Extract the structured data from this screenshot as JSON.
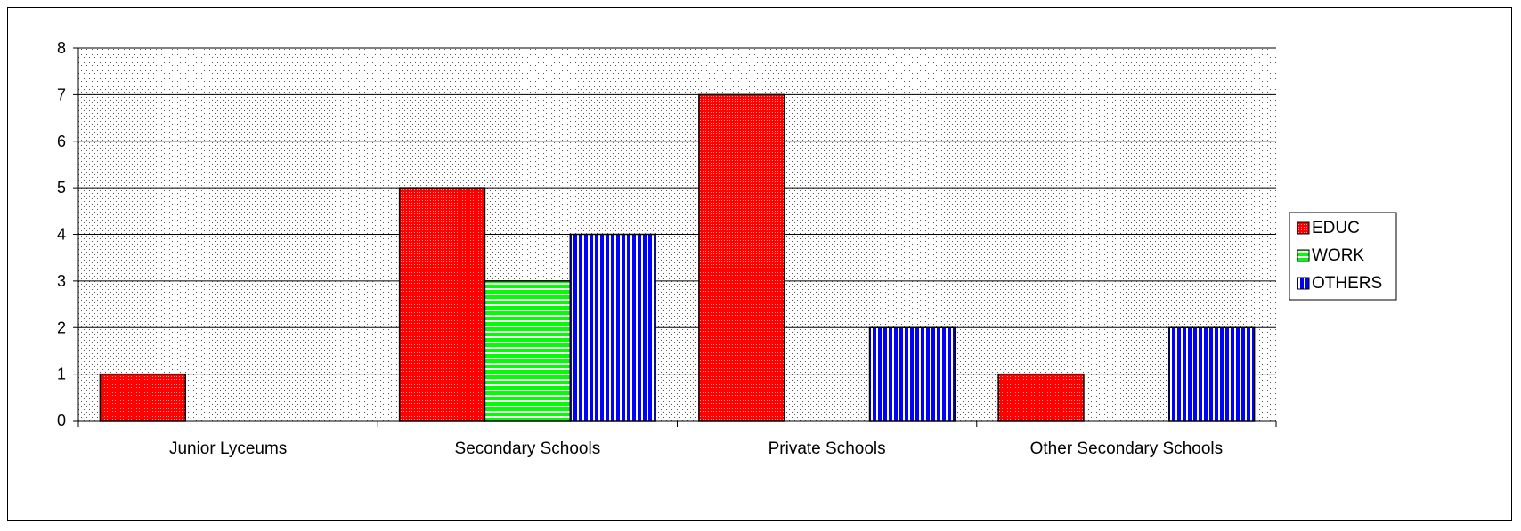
{
  "chart_data": {
    "type": "bar",
    "categories": [
      "Junior Lyceums",
      "Secondary Schools",
      "Private Schools",
      "Other Secondary Schools"
    ],
    "series": [
      {
        "name": "EDUC",
        "values": [
          1,
          5,
          7,
          1
        ],
        "color": "#ff0000",
        "pattern": "dots"
      },
      {
        "name": "WORK",
        "values": [
          0,
          3,
          0,
          0
        ],
        "color": "#00ff00",
        "pattern": "horizontal-lines"
      },
      {
        "name": "OTHERS",
        "values": [
          0,
          4,
          2,
          2
        ],
        "color": "#0000ff",
        "pattern": "vertical-lines"
      }
    ],
    "yticks": [
      0,
      1,
      2,
      3,
      4,
      5,
      6,
      7,
      8
    ],
    "ylim": [
      0,
      8
    ],
    "grid": true,
    "legend_position": "right",
    "plot_background": "dotted-gray"
  }
}
